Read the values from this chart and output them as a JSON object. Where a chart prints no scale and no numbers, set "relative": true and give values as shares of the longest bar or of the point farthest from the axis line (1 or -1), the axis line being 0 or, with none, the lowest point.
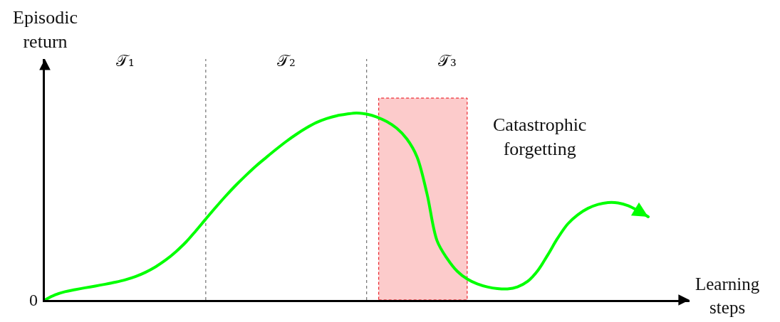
{
  "chart_data": {
    "type": "line",
    "relative": true,
    "xlabel": "Learning\nsteps",
    "ylabel": "Episodic\nreturn",
    "categories": [
      null,
      null,
      null,
      null,
      null,
      null,
      null,
      null,
      null,
      null,
      null,
      null,
      null,
      null,
      null,
      null,
      null,
      null,
      null,
      null,
      null,
      null,
      null,
      null,
      null,
      null,
      null,
      null,
      null,
      null,
      null,
      null,
      null,
      null,
      null,
      null,
      null,
      null,
      null,
      null,
      null,
      null,
      null,
      null,
      null,
      null,
      null,
      null,
      null,
      null,
      null,
      null,
      null,
      null,
      null,
      null,
      null,
      null,
      null,
      null,
      null
    ],
    "series": [
      {
        "color": "#00ff00",
        "values": [
          0,
          0.027,
          0.044,
          0.055,
          0.065,
          0.074,
          0.084,
          0.095,
          0.108,
          0.125,
          0.148,
          0.177,
          0.213,
          0.257,
          0.308,
          0.369,
          0.433,
          0.496,
          0.557,
          0.614,
          0.667,
          0.717,
          0.762,
          0.806,
          0.848,
          0.886,
          0.92,
          0.949,
          0.97,
          0.985,
          0.994,
          1,
          0.994,
          0.979,
          0.954,
          0.918,
          0.861,
          0.766,
          0.568,
          0.317,
          0.222,
          0.154,
          0.112,
          0.086,
          0.07,
          0.061,
          0.059,
          0.07,
          0.099,
          0.156,
          0.24,
          0.331,
          0.407,
          0.456,
          0.49,
          0.511,
          0.521,
          0.519,
          0.504,
          0.477,
          0.445
        ]
      }
    ],
    "annotations": [
      "𝒯₁",
      "𝒯₂",
      "𝒯₃",
      "Catastrophic\nforgetting",
      "0"
    ]
  }
}
